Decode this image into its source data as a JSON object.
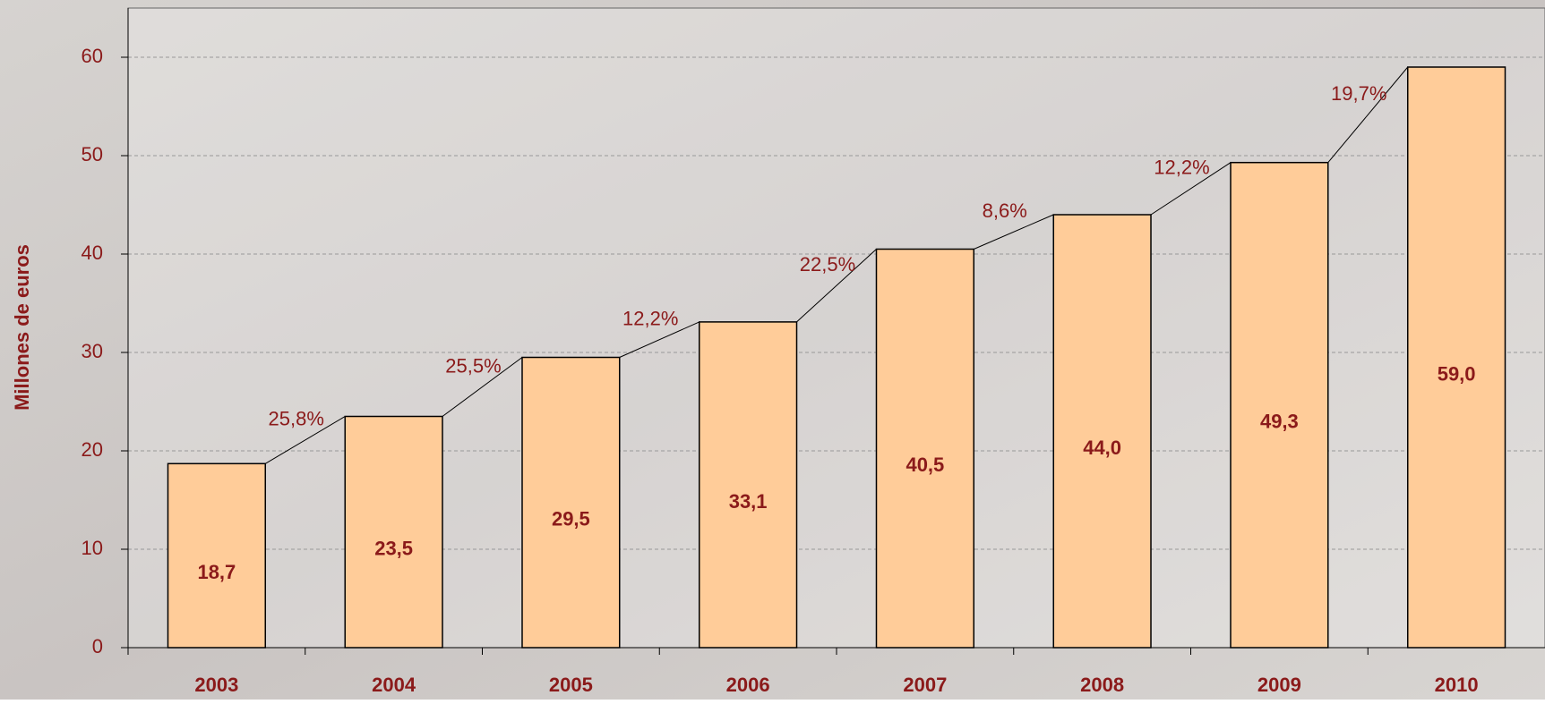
{
  "chart_data": {
    "type": "bar",
    "y_label": "Millones de euros",
    "categories": [
      "2003",
      "2004",
      "2005",
      "2006",
      "2007",
      "2008",
      "2009",
      "2010"
    ],
    "values": [
      18.7,
      23.5,
      29.5,
      33.1,
      40.5,
      44.0,
      49.3,
      59.0
    ],
    "value_labels": [
      "18,7",
      "23,5",
      "29,5",
      "33,1",
      "40,5",
      "44,0",
      "49,3",
      "59,0"
    ],
    "annotations": [
      "25,8%",
      "25,5%",
      "12,2%",
      "22,5%",
      "8,6%",
      "12,2%",
      "19,7%"
    ],
    "color": "#ffcc99",
    "ylim": [
      0,
      65
    ],
    "yticks": [
      0,
      10,
      20,
      30,
      40,
      50,
      60
    ],
    "grid": true
  }
}
